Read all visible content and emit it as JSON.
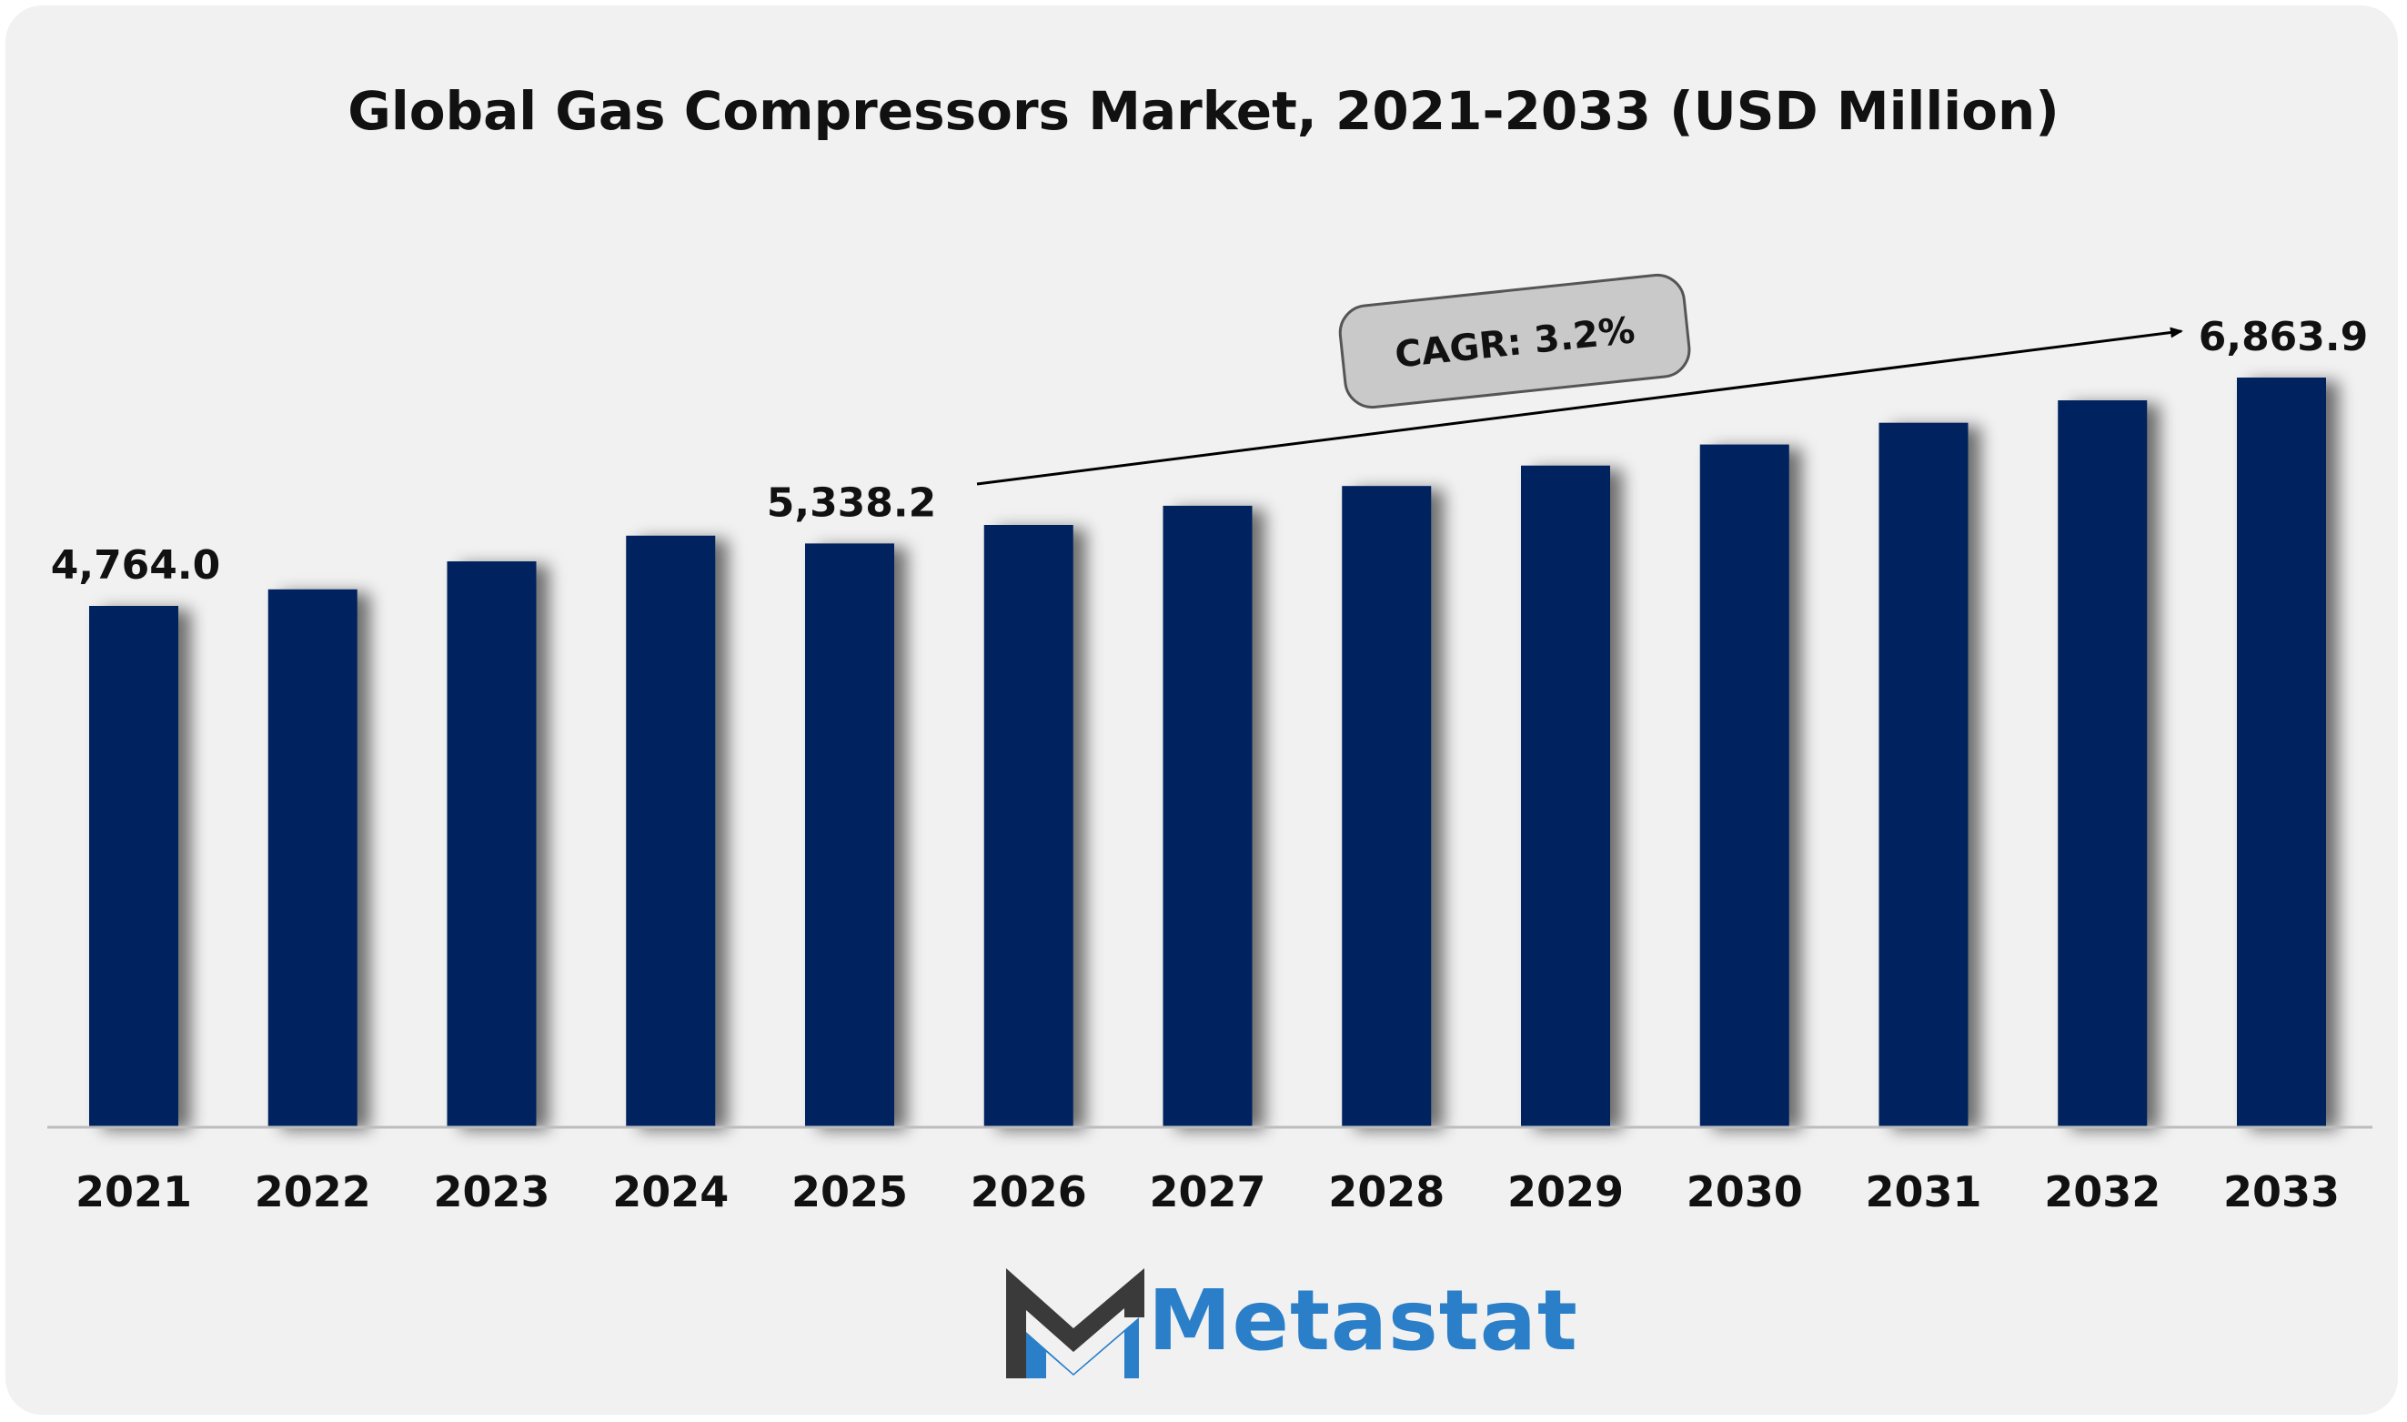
{
  "chart_data": {
    "type": "bar",
    "title": "Global Gas Compressors Market, 2021-2033 (USD Million)",
    "categories": [
      "2021",
      "2022",
      "2023",
      "2024",
      "2025",
      "2026",
      "2027",
      "2028",
      "2029",
      "2030",
      "2031",
      "2032",
      "2033"
    ],
    "values": [
      4764.0,
      4916.4,
      5173.7,
      5410.0,
      5338.2,
      5508.6,
      5684.9,
      5866.8,
      6054.5,
      6248.3,
      6448.2,
      6654.6,
      6863.9
    ],
    "data_labels": [
      {
        "category": "2021",
        "text": "4,764.0"
      },
      {
        "category": "2025",
        "text": "5,338.2"
      },
      {
        "category": "2033",
        "text": "6,863.9"
      }
    ],
    "annotation": "CAGR: 3.2%",
    "bar_color": "#03205f",
    "grid": false,
    "legend": "none"
  },
  "brand": {
    "name": "Metastat",
    "color_primary": "#2a7fc8",
    "color_dark": "#3a3a3a"
  }
}
